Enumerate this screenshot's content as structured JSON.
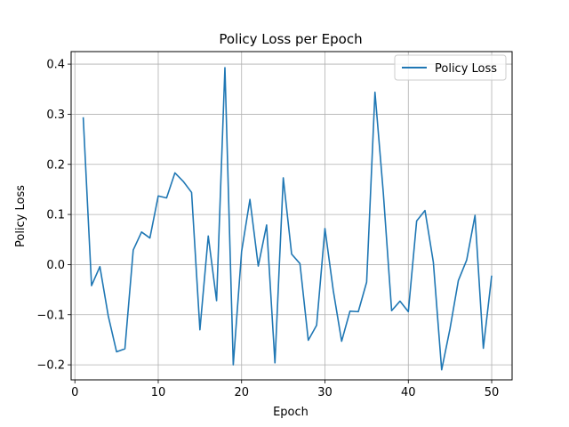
{
  "chart_data": {
    "type": "line",
    "title": "Policy Loss per Epoch",
    "xlabel": "Epoch",
    "ylabel": "Policy Loss",
    "xlim": [
      -0.45,
      52.45
    ],
    "ylim": [
      -0.23,
      0.425
    ],
    "x_ticks": [
      0,
      10,
      20,
      30,
      40,
      50
    ],
    "y_ticks": [
      -0.2,
      -0.1,
      0.0,
      0.1,
      0.2,
      0.3,
      0.4
    ],
    "x_tick_labels": [
      "0",
      "10",
      "20",
      "30",
      "40",
      "50"
    ],
    "y_tick_labels": [
      "−0.2",
      "−0.1",
      "0.0",
      "0.1",
      "0.2",
      "0.3",
      "0.4"
    ],
    "grid": true,
    "legend_position": "top-right",
    "series": [
      {
        "name": "Policy Loss",
        "color": "#1f77b4",
        "x": [
          1,
          2,
          3,
          4,
          5,
          6,
          7,
          8,
          9,
          10,
          11,
          12,
          13,
          14,
          15,
          16,
          17,
          18,
          19,
          20,
          21,
          22,
          23,
          24,
          25,
          26,
          27,
          28,
          29,
          30,
          31,
          32,
          33,
          34,
          35,
          36,
          37,
          38,
          39,
          40,
          41,
          42,
          43,
          44,
          45,
          46,
          47,
          48,
          49,
          50
        ],
        "y": [
          0.294,
          -0.042,
          -0.004,
          -0.102,
          -0.174,
          -0.168,
          0.029,
          0.065,
          0.053,
          0.137,
          0.133,
          0.183,
          0.166,
          0.144,
          -0.13,
          0.057,
          -0.072,
          0.393,
          -0.2,
          0.026,
          0.13,
          -0.003,
          0.079,
          -0.196,
          0.173,
          0.021,
          0.002,
          -0.151,
          -0.121,
          0.072,
          -0.052,
          -0.153,
          -0.093,
          -0.094,
          -0.035,
          0.344,
          0.143,
          -0.092,
          -0.073,
          -0.094,
          0.087,
          0.108,
          0.005,
          -0.21,
          -0.128,
          -0.032,
          0.009,
          0.098,
          -0.167,
          -0.022
        ]
      }
    ]
  }
}
